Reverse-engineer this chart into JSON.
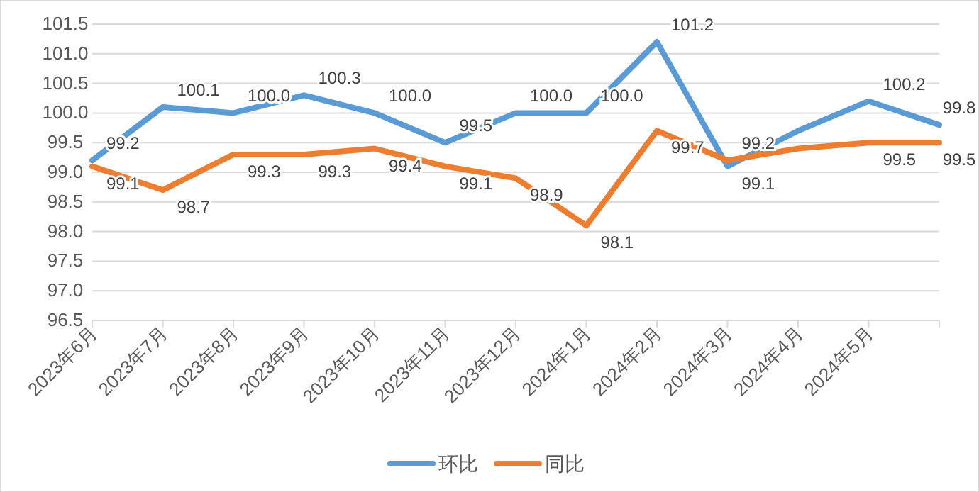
{
  "chart_data": {
    "type": "line",
    "categories": [
      "2023年6月",
      "2023年7月",
      "2023年8月",
      "2023年9月",
      "2023年10月",
      "2023年11月",
      "2023年12月",
      "2024年1月",
      "2024年2月",
      "2024年3月",
      "2024年4月",
      "2024年5月",
      null
    ],
    "series": [
      {
        "name": "环比",
        "color": "#5b9bd5",
        "values": [
          99.2,
          100.1,
          100.0,
          100.3,
          100.0,
          99.5,
          100.0,
          100.0,
          101.2,
          99.1,
          99.7,
          100.2,
          99.8
        ],
        "value_labels": [
          "99.2",
          "100.1",
          "100.0",
          "100.3",
          "100.0",
          "99.5",
          "100.0",
          "100.0",
          "101.2",
          "99.1",
          null,
          "100.2",
          "99.8"
        ]
      },
      {
        "name": "同比",
        "color": "#ed7d31",
        "values": [
          99.1,
          98.7,
          99.3,
          99.3,
          99.4,
          99.1,
          98.9,
          98.1,
          99.7,
          99.2,
          99.4,
          99.5,
          99.5
        ],
        "value_labels": [
          "99.1",
          "98.7",
          "99.3",
          "99.3",
          "99.4",
          "99.1",
          "98.9",
          "98.1",
          "99.7",
          "99.2",
          null,
          "99.5",
          "99.5"
        ]
      }
    ],
    "ylim": [
      96.5,
      101.5
    ],
    "yticks": [
      {
        "value": 96.5,
        "label": "96.5"
      },
      {
        "value": 97,
        "label": "97.0"
      },
      {
        "value": 97.5,
        "label": "97.5"
      },
      {
        "value": 98,
        "label": "98.0"
      },
      {
        "value": 98.5,
        "label": "98.5"
      },
      {
        "value": 99,
        "label": "99.0"
      },
      {
        "value": 99.5,
        "label": "99.5"
      },
      {
        "value": 100,
        "label": "100.0"
      },
      {
        "value": 100.5,
        "label": "100.5"
      },
      {
        "value": 101,
        "label": "101.0"
      },
      {
        "value": 101.5,
        "label": "101.5"
      }
    ],
    "grid": "y",
    "legend": "bottom",
    "marker": "none",
    "line_style": "solid"
  }
}
